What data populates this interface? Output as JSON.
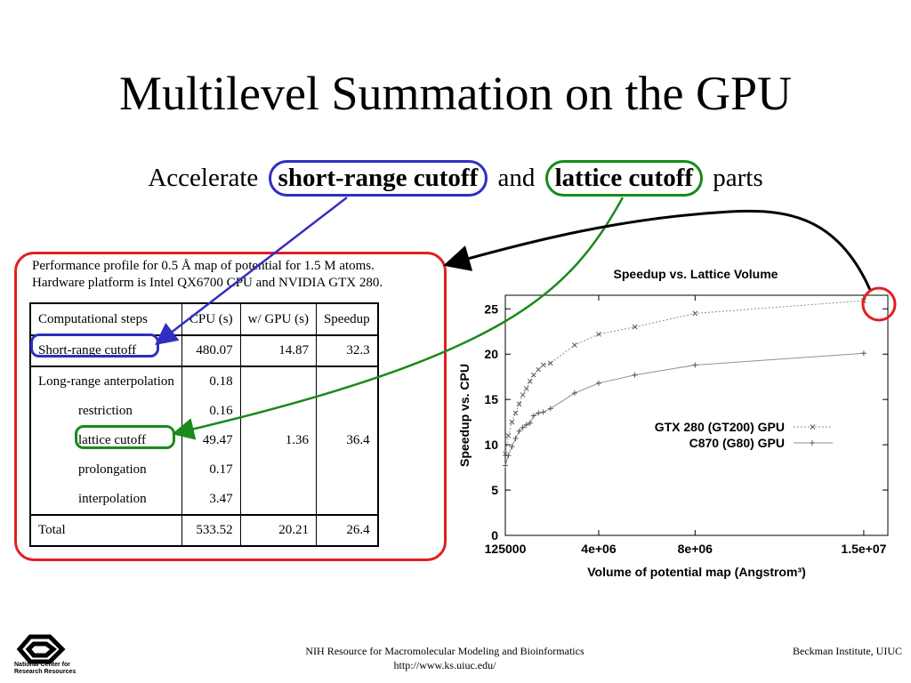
{
  "slide": {
    "title": "Multilevel Summation on the GPU",
    "subtitle": {
      "prefix": "Accelerate",
      "term1": "short-range cutoff",
      "mid": "and",
      "term2": "lattice cutoff",
      "suffix": "parts"
    }
  },
  "profile": {
    "line1": "Performance profile for 0.5 Å map of potential for  1.5 M atoms.",
    "line2": "Hardware platform is Intel QX6700 CPU and NVIDIA GTX 280."
  },
  "table": {
    "headers": [
      "Computational steps",
      "CPU (s)",
      "w/ GPU (s)",
      "Speedup"
    ],
    "short_range": {
      "step": "Short-range cutoff",
      "cpu": "480.07",
      "gpu": "14.87",
      "speedup": "32.3"
    },
    "long_range": [
      {
        "step": "Long-range anterpolation",
        "cpu": "0.18"
      },
      {
        "step": "restriction",
        "cpu": "0.16"
      },
      {
        "step": "lattice cutoff",
        "cpu": "49.47"
      },
      {
        "step": "prolongation",
        "cpu": "0.17"
      },
      {
        "step": "interpolation",
        "cpu": "3.47"
      }
    ],
    "long_range_gpu": "1.36",
    "long_range_speedup": "36.4",
    "total": {
      "step": "Total",
      "cpu": "533.52",
      "gpu": "20.21",
      "speedup": "26.4"
    }
  },
  "chart_data": {
    "type": "line",
    "title": "Speedup vs. Lattice Volume",
    "xlabel": "Volume of potential map (Angstrom³)",
    "ylabel": "Speedup vs. CPU",
    "xlim": [
      125000,
      16000000
    ],
    "ylim": [
      0,
      26.5
    ],
    "x_ticks": [
      {
        "value": 125000,
        "label": "125000"
      },
      {
        "value": 4000000,
        "label": "4e+06"
      },
      {
        "value": 8000000,
        "label": "8e+06"
      },
      {
        "value": 15000000,
        "label": "1.5e+07"
      }
    ],
    "y_ticks": [
      0,
      5,
      10,
      15,
      20,
      25
    ],
    "legend_position": "center-right",
    "series": [
      {
        "name": "GTX 280 (GT200) GPU",
        "marker": "x",
        "color": "#909090",
        "x": [
          125000,
          250000,
          400000,
          550000,
          700000,
          850000,
          1000000,
          1150000,
          1300000,
          1500000,
          1700000,
          2000000,
          3000000,
          4000000,
          5500000,
          8000000,
          15000000
        ],
        "y": [
          9.0,
          11.0,
          12.5,
          13.5,
          14.5,
          15.5,
          16.2,
          17.0,
          17.7,
          18.3,
          18.8,
          19.0,
          21.0,
          22.2,
          23.0,
          24.5,
          25.9
        ]
      },
      {
        "name": "C870 (G80) GPU",
        "marker": "+",
        "color": "#909090",
        "x": [
          125000,
          250000,
          400000,
          550000,
          700000,
          850000,
          1000000,
          1150000,
          1300000,
          1500000,
          1700000,
          2000000,
          3000000,
          4000000,
          5500000,
          8000000,
          15000000
        ],
        "y": [
          7.7,
          8.8,
          9.8,
          10.7,
          11.5,
          11.9,
          12.2,
          12.4,
          13.2,
          13.5,
          13.6,
          14.0,
          15.7,
          16.8,
          17.7,
          18.8,
          20.1
        ]
      }
    ]
  },
  "footer": {
    "center_line1": "NIH Resource for Macromolecular Modeling and Bioinformatics",
    "center_line2": "http://www.ks.uiuc.edu/",
    "right": "Beckman Institute, UIUC",
    "logo_text_line1": "National Center for",
    "logo_text_line2": "Research Resources"
  },
  "colors": {
    "red_outline": "#e0201f",
    "blue_outline": "#2f2fbf",
    "green_outline": "#1a8a1a"
  }
}
